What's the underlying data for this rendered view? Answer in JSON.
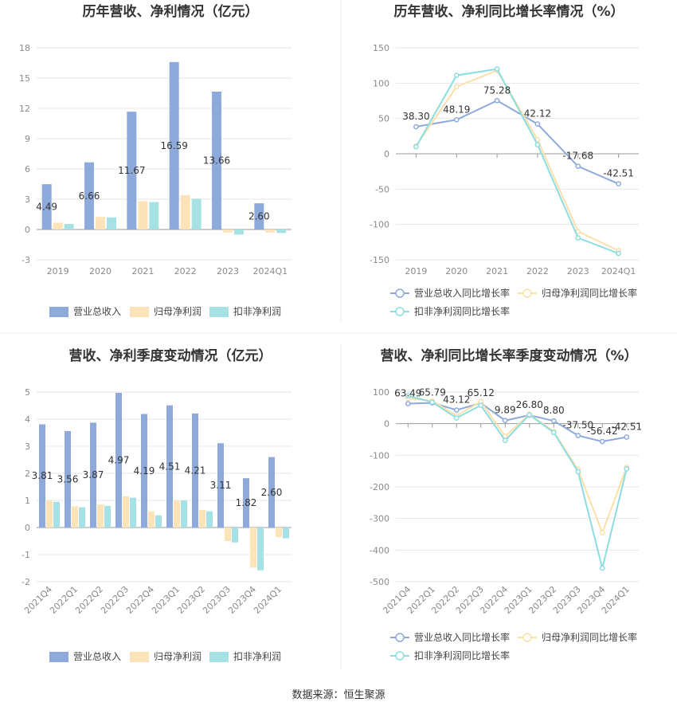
{
  "source_label": "数据来源：恒生聚源",
  "colors": {
    "revenue": "#8eaadb",
    "net_profit": "#fde3b8",
    "deducted_profit": "#a6e2e4",
    "revenue_line": "#8eaadb",
    "net_line": "#fddfaa",
    "deducted_line": "#8cdde0",
    "grid": "#e6e6e6",
    "axis": "#999999",
    "divider": "#eeeeee"
  },
  "chart_data": [
    {
      "type": "bar",
      "title": "历年营收、净利情况（亿元）",
      "categories": [
        "2019",
        "2020",
        "2021",
        "2022",
        "2023",
        "2024Q1"
      ],
      "ylim": [
        -3,
        18
      ],
      "yticks": [
        -3,
        0,
        3,
        6,
        9,
        12,
        15,
        18
      ],
      "grid": true,
      "legend_position": "bottom",
      "series": [
        {
          "name": "营业总收入",
          "values": [
            4.49,
            6.66,
            11.67,
            16.59,
            13.66,
            2.6
          ],
          "labels": [
            "4.49",
            "6.66",
            "11.67",
            "16.59",
            "13.66",
            "2.60"
          ]
        },
        {
          "name": "归母净利润",
          "values": [
            0.68,
            1.25,
            2.8,
            3.4,
            -0.3,
            -0.3
          ]
        },
        {
          "name": "扣非净利润",
          "values": [
            0.55,
            1.2,
            2.72,
            3.05,
            -0.5,
            -0.35
          ]
        }
      ]
    },
    {
      "type": "line",
      "title": "历年营收、净利同比增长率情况（%）",
      "categories": [
        "2019",
        "2020",
        "2021",
        "2022",
        "2023",
        "2024Q1"
      ],
      "ylim": [
        -150,
        150
      ],
      "yticks": [
        -150,
        -100,
        -50,
        0,
        50,
        100,
        150
      ],
      "grid": true,
      "legend_position": "bottom",
      "series": [
        {
          "name": "营业总收入同比增长率",
          "values": [
            38.3,
            48.19,
            75.28,
            42.12,
            -17.68,
            -42.51
          ],
          "labels": [
            "38.30",
            "48.19",
            "75.28",
            "42.12",
            "-17.68",
            "-42.51"
          ]
        },
        {
          "name": "归母净利润同比增长率",
          "values": [
            11,
            95,
            118,
            20,
            -110,
            -137
          ]
        },
        {
          "name": "扣非净利润同比增长率",
          "values": [
            10,
            111,
            120,
            13,
            -119,
            -141
          ]
        }
      ]
    },
    {
      "type": "bar",
      "title": "营收、净利季度变动情况（亿元）",
      "categories": [
        "2021Q4",
        "2022Q1",
        "2022Q2",
        "2022Q3",
        "2022Q4",
        "2023Q1",
        "2023Q2",
        "2023Q3",
        "2023Q4",
        "2024Q1"
      ],
      "ylim": [
        -2,
        5
      ],
      "yticks": [
        -2,
        -1,
        0,
        1,
        2,
        3,
        4,
        5
      ],
      "grid": true,
      "legend_position": "bottom",
      "series": [
        {
          "name": "营业总收入",
          "values": [
            3.81,
            3.56,
            3.87,
            4.97,
            4.19,
            4.51,
            4.21,
            3.11,
            1.82,
            2.6
          ],
          "labels": [
            "3.81",
            "3.56",
            "3.87",
            "4.97",
            "4.19",
            "4.51",
            "4.21",
            "3.11",
            "1.82",
            "2.60"
          ]
        },
        {
          "name": "归母净利润",
          "values": [
            1.0,
            0.78,
            0.85,
            1.15,
            0.6,
            1.0,
            0.65,
            -0.5,
            -1.48,
            -0.35
          ]
        },
        {
          "name": "扣非净利润",
          "values": [
            0.95,
            0.75,
            0.8,
            1.1,
            0.45,
            1.0,
            0.6,
            -0.55,
            -1.58,
            -0.4
          ]
        }
      ]
    },
    {
      "type": "line",
      "title": "营收、净利同比增长率季度变动情况（%）",
      "categories": [
        "2021Q4",
        "2022Q1",
        "2022Q2",
        "2022Q3",
        "2022Q4",
        "2023Q1",
        "2023Q2",
        "2023Q3",
        "2023Q4",
        "2024Q1"
      ],
      "ylim": [
        -500,
        100
      ],
      "yticks": [
        -500,
        -400,
        -300,
        -200,
        -100,
        0,
        100
      ],
      "grid": true,
      "legend_position": "bottom",
      "series": [
        {
          "name": "营业总收入同比增长率",
          "values": [
            63.49,
            65.79,
            43.12,
            65.12,
            9.89,
            26.8,
            8.8,
            -37.5,
            -56.42,
            -42.51
          ],
          "labels": [
            "63.49",
            "65.79",
            "43.12",
            "65.12",
            "9.89",
            "26.80",
            "8.80",
            "-37.50",
            "-56.42",
            "-42.51"
          ]
        },
        {
          "name": "归母净利润同比增长率",
          "values": [
            80,
            72,
            25,
            70,
            -40,
            30,
            -25,
            -145,
            -345,
            -138
          ]
        },
        {
          "name": "扣非净利润同比增长率",
          "values": [
            88,
            68,
            18,
            58,
            -53,
            28,
            -28,
            -152,
            -457,
            -143
          ]
        }
      ]
    }
  ]
}
